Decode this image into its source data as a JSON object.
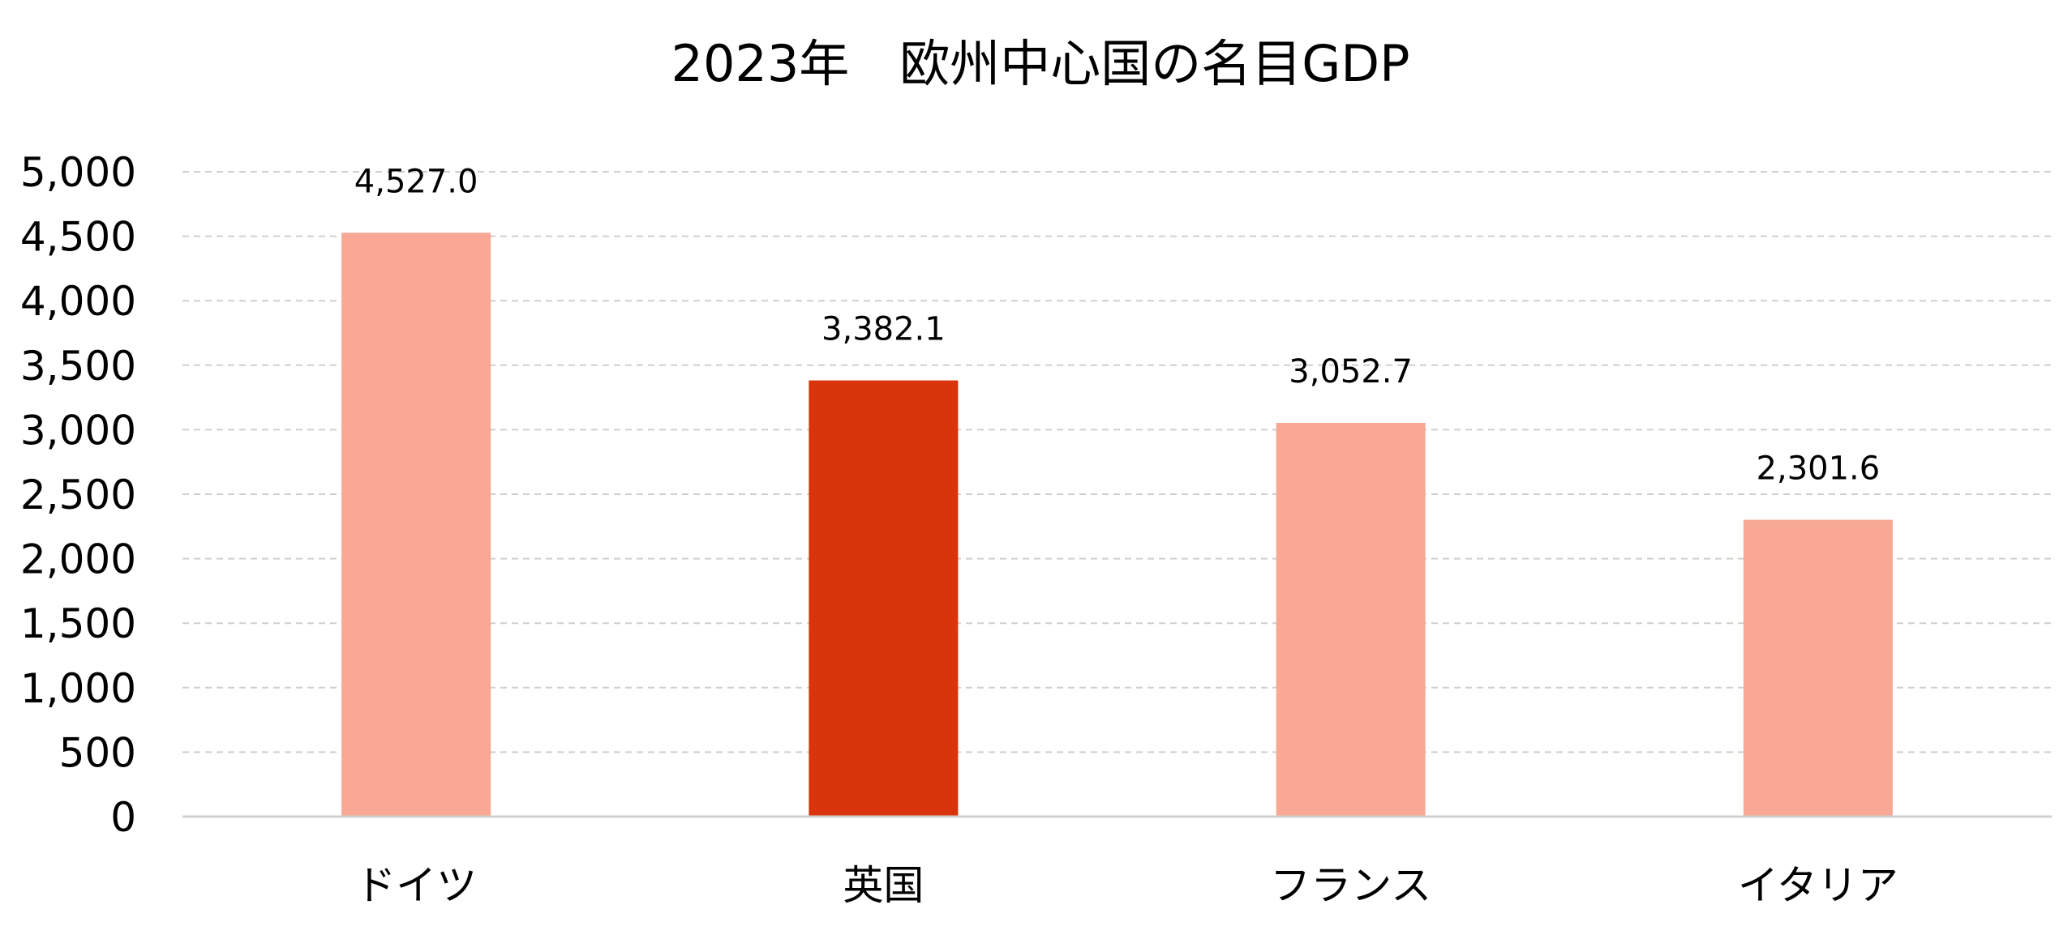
{
  "chart_data": {
    "type": "bar",
    "title": "2023年　欧州中心国の名目GDP",
    "categories": [
      "ドイツ",
      "英国",
      "フランス",
      "イタリア"
    ],
    "values": [
      4527.0,
      3382.1,
      3052.7,
      2301.6
    ],
    "value_labels": [
      "4,527.0",
      "3,382.1",
      "3,052.7",
      "2,301.6"
    ],
    "colors": [
      "#F8A895",
      "#D9340B",
      "#F8A895",
      "#F8A895"
    ],
    "ylim": [
      0,
      5000
    ],
    "yticks": [
      0,
      500,
      1000,
      1500,
      2000,
      2500,
      3000,
      3500,
      4000,
      4500,
      5000
    ],
    "ytick_labels": [
      "0",
      "500",
      "1,000",
      "1,500",
      "2,000",
      "2,500",
      "3,000",
      "3,500",
      "4,000",
      "4,500",
      "5,000"
    ],
    "grid": true,
    "xlabel": "",
    "ylabel": ""
  }
}
